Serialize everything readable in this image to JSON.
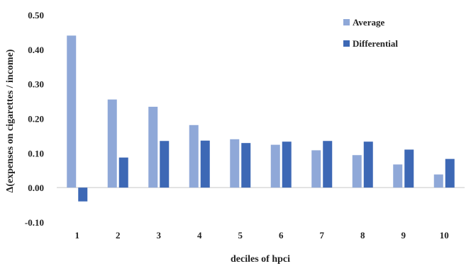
{
  "chart_data": {
    "type": "bar",
    "title": "",
    "xlabel": "deciles of hpci",
    "ylabel": "Δ(expenses on cigarettes / income)",
    "categories": [
      "1",
      "2",
      "3",
      "4",
      "5",
      "6",
      "7",
      "8",
      "9",
      "10"
    ],
    "series": [
      {
        "name": "Average",
        "color": "#8fa8d8",
        "values": [
          0.44,
          0.255,
          0.234,
          0.181,
          0.14,
          0.124,
          0.108,
          0.094,
          0.067,
          0.038
        ]
      },
      {
        "name": "Differential",
        "color": "#3d68b5",
        "values": [
          -0.04,
          0.087,
          0.135,
          0.136,
          0.129,
          0.133,
          0.135,
          0.133,
          0.11,
          0.083
        ]
      }
    ],
    "ylim": [
      -0.1,
      0.5
    ],
    "yticks": [
      "-0.10",
      "0.00",
      "0.10",
      "0.20",
      "0.30",
      "0.40",
      "0.50"
    ],
    "grid": false,
    "legend_position": "top-right"
  }
}
